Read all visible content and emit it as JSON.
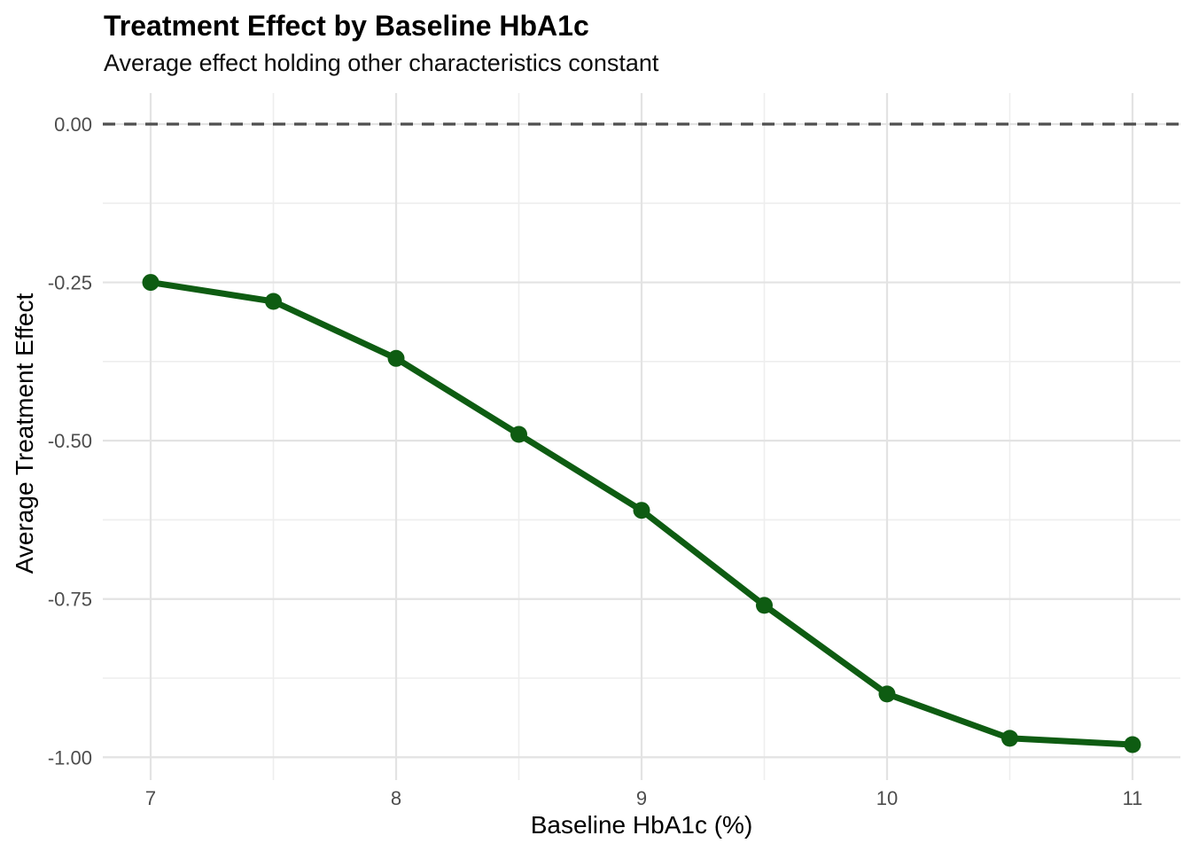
{
  "header": {
    "title": "Treatment Effect by Baseline HbA1c",
    "subtitle": "Average effect holding other characteristics constant"
  },
  "chart_data": {
    "type": "line",
    "title": "Treatment Effect by Baseline HbA1c",
    "subtitle": "Average effect holding other characteristics constant",
    "xlabel": "Baseline HbA1c (%)",
    "ylabel": "Average Treatment Effect",
    "series": [
      {
        "name": "Average Treatment Effect",
        "x": [
          7,
          7.5,
          8,
          8.5,
          9,
          9.5,
          10,
          10.5,
          11
        ],
        "values": [
          -0.25,
          -0.28,
          -0.37,
          -0.49,
          -0.61,
          -0.76,
          -0.9,
          -0.97,
          -0.98
        ]
      }
    ],
    "x_ticks": [
      7,
      8,
      9,
      10,
      11
    ],
    "x_tick_labels": [
      "7",
      "8",
      "9",
      "10",
      "11"
    ],
    "x_minor_ticks": [
      7.5,
      8.5,
      9.5,
      10.5
    ],
    "y_ticks": [
      0,
      -0.25,
      -0.5,
      -0.75,
      -1.0
    ],
    "y_tick_labels": [
      "0.00",
      "-0.25",
      "-0.50",
      "-0.75",
      "-1.00"
    ],
    "y_minor_ticks": [
      -0.125,
      -0.375,
      -0.625,
      -0.875
    ],
    "xlim": [
      6.805,
      11.195
    ],
    "ylim": [
      -1.036,
      0.049
    ],
    "reference_line": {
      "y": 0,
      "style": "dashed"
    },
    "grid": true,
    "legend": "none",
    "colors": {
      "line": "#0e5c12",
      "point": "#0e5c12",
      "reference": "#4f4f4f",
      "grid_major": "#e3e3e3",
      "grid_minor": "#eeeeee",
      "tick_label": "#4d4d4d",
      "text": "#000000",
      "background": "#ffffff"
    }
  }
}
